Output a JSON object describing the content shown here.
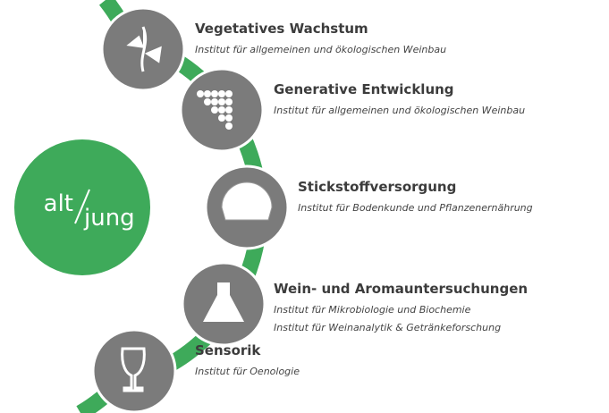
{
  "center": {
    "left": "alt",
    "right": "jung"
  },
  "nodes": [
    {
      "title": "Vegetatives Wachstum",
      "lines": [
        "Institut für allgemeinen und ökologischen Weinbau"
      ]
    },
    {
      "title": "Generative Entwicklung",
      "lines": [
        "Institut für allgemeinen und ökologischen Weinbau"
      ]
    },
    {
      "title": "Stickstoffversorgung",
      "lines": [
        "Institut für Bodenkunde und Pflanzenernährung"
      ]
    },
    {
      "title": "Wein- und Aromauntersuchungen",
      "lines": [
        "Institut für Mikrobiologie und Biochemie",
        "Institut für Weinanalytik & Getränkeforschung"
      ]
    },
    {
      "title": "Sensorik",
      "lines": [
        "Institut für Oenologie"
      ]
    }
  ]
}
